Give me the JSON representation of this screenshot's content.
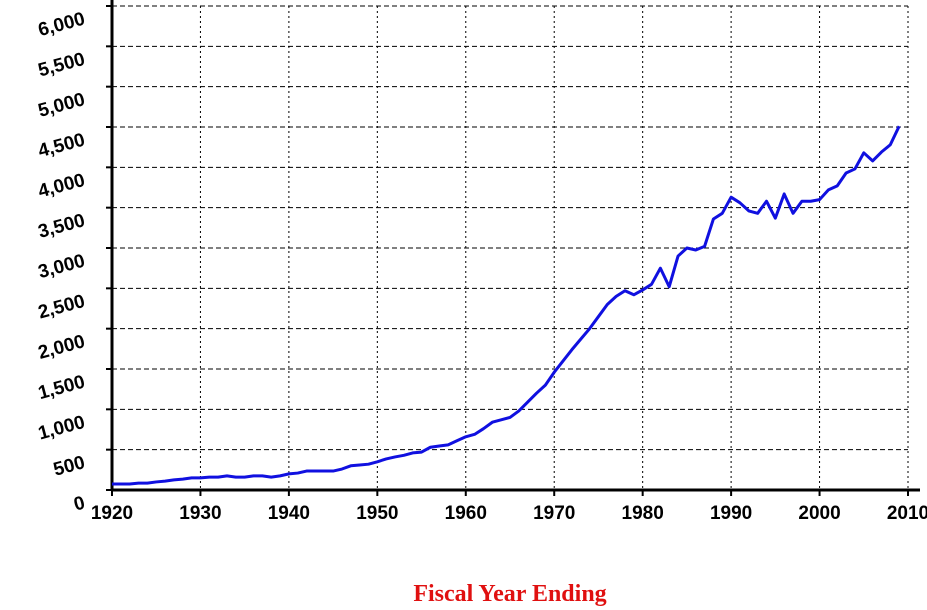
{
  "chart_data": {
    "type": "line",
    "x_label": "Fiscal Year Ending",
    "x": [
      1920,
      1921,
      1922,
      1923,
      1924,
      1925,
      1926,
      1927,
      1928,
      1929,
      1930,
      1931,
      1932,
      1933,
      1934,
      1935,
      1936,
      1937,
      1938,
      1939,
      1940,
      1941,
      1942,
      1943,
      1944,
      1945,
      1946,
      1947,
      1948,
      1949,
      1950,
      1951,
      1952,
      1953,
      1954,
      1955,
      1956,
      1957,
      1958,
      1959,
      1960,
      1961,
      1962,
      1963,
      1964,
      1965,
      1966,
      1967,
      1968,
      1969,
      1970,
      1971,
      1972,
      1973,
      1974,
      1975,
      1976,
      1977,
      1978,
      1979,
      1980,
      1981,
      1982,
      1983,
      1984,
      1985,
      1986,
      1987,
      1988,
      1989,
      1990,
      1991,
      1992,
      1993,
      1994,
      1995,
      1996,
      1997,
      1998,
      1999,
      2000,
      2001,
      2002,
      2003,
      2004,
      2005,
      2006,
      2007,
      2008,
      2009
    ],
    "series": [
      {
        "color": "#1010e0",
        "values": [
          75,
          75,
          75,
          85,
          85,
          100,
          110,
          125,
          135,
          150,
          150,
          160,
          160,
          175,
          160,
          160,
          175,
          175,
          160,
          175,
          200,
          210,
          235,
          235,
          235,
          235,
          260,
          300,
          310,
          320,
          350,
          385,
          410,
          430,
          460,
          470,
          530,
          545,
          560,
          610,
          660,
          690,
          760,
          840,
          870,
          900,
          980,
          1090,
          1200,
          1300,
          1460,
          1600,
          1740,
          1870,
          2000,
          2150,
          2300,
          2400,
          2470,
          2420,
          2480,
          2550,
          2750,
          2520,
          2900,
          3000,
          2975,
          3020,
          3360,
          3430,
          3630,
          3560,
          3460,
          3430,
          3580,
          3370,
          3670,
          3430,
          3580,
          3580,
          3600,
          3720,
          3770,
          3930,
          3980,
          4180,
          4080,
          4190,
          4280,
          4510
        ]
      }
    ],
    "xlim": [
      1920,
      2010
    ],
    "xticks": [
      1920,
      1930,
      1940,
      1950,
      1960,
      1970,
      1980,
      1990,
      2000,
      2010
    ],
    "ylim": [
      0,
      6000
    ],
    "yticks": [
      0,
      500,
      {
        "value": 1000,
        "label": "1,000"
      },
      {
        "value": 1500,
        "label": "1,500"
      },
      {
        "value": 2000,
        "label": "2,000"
      },
      {
        "value": 2500,
        "label": "2,500"
      },
      {
        "value": 3000,
        "label": "3,000"
      },
      {
        "value": 3500,
        "label": "3,500"
      },
      {
        "value": 4000,
        "label": "4,000"
      },
      {
        "value": 4500,
        "label": "4,500"
      },
      {
        "value": 5000,
        "label": "5,000"
      },
      {
        "value": 5500,
        "label": "5,500"
      },
      {
        "value": 6000,
        "label": "6,000"
      }
    ],
    "grid": true
  }
}
